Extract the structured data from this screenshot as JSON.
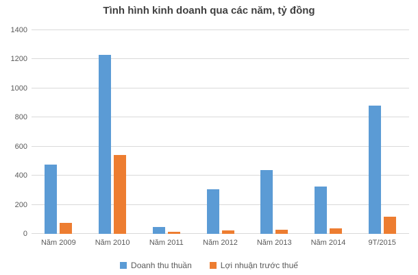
{
  "chart_data": {
    "type": "bar",
    "title": "Tình hình kinh doanh qua các năm, tỷ đồng",
    "categories": [
      "Năm 2009",
      "Năm 2010",
      "Năm 2011",
      "Năm 2012",
      "Năm 2013",
      "Năm 2014",
      "9T/2015"
    ],
    "series": [
      {
        "name": "Doanh thu thuần",
        "color": "#5B9BD5",
        "values": [
          475,
          1230,
          45,
          305,
          440,
          325,
          880
        ]
      },
      {
        "name": "Lợi nhuận trước thuế",
        "color": "#ED7D31",
        "values": [
          75,
          540,
          12,
          22,
          28,
          37,
          118
        ]
      }
    ],
    "xlabel": "",
    "ylabel": "",
    "ylim": [
      0,
      1400
    ],
    "ytick_step": 200,
    "yticks": [
      0,
      200,
      400,
      600,
      800,
      1000,
      1200,
      1400
    ],
    "grid": true,
    "legend_position": "bottom"
  },
  "colors": {
    "title_text": "#404040",
    "axis_text": "#595959",
    "gridline": "#D9D9D9",
    "background": "#FFFFFF"
  }
}
